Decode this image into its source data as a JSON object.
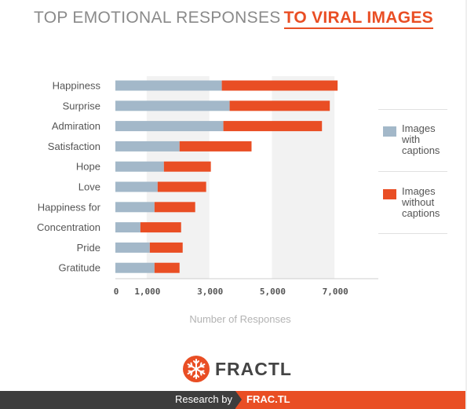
{
  "title": {
    "part1": "TOP EMOTIONAL RESPONSES",
    "part2": "TO VIRAL IMAGES"
  },
  "colors": {
    "with_captions": "#a3b8c9",
    "without_captions": "#e94e24",
    "band": "#f2f2f2",
    "text": "#555555",
    "accent": "#e94e24",
    "footer_dark": "#3d3d3d"
  },
  "chart_data": {
    "type": "bar",
    "orientation": "horizontal",
    "stacked": true,
    "categories": [
      "Happiness",
      "Surprise",
      "Admiration",
      "Satisfaction",
      "Hope",
      "Love",
      "Happiness for",
      "Concentration",
      "Pride",
      "Gratitude"
    ],
    "series": [
      {
        "name": "Images with captions",
        "values": [
          3400,
          3650,
          3450,
          2050,
          1550,
          1350,
          1250,
          800,
          1100,
          1250
        ]
      },
      {
        "name": "Images without captions",
        "values": [
          3700,
          3200,
          3150,
          2300,
          1500,
          1550,
          1300,
          1300,
          1050,
          800
        ]
      }
    ],
    "xticks": [
      "0",
      "1,000",
      "3,000",
      "5,000",
      "7,000"
    ],
    "xtick_values": [
      0,
      1000,
      3000,
      5000,
      7000
    ],
    "xlim": [
      0,
      8400
    ],
    "xlabel": "Number of Responses",
    "ylabel": "",
    "grid": false,
    "background_bands": [
      [
        1000,
        3000
      ],
      [
        5000,
        7000
      ]
    ],
    "legend_position": "right"
  },
  "legend": [
    {
      "label": "Images with captions",
      "lines": [
        "Images",
        "with",
        "captions"
      ]
    },
    {
      "label": "Images without captions",
      "lines": [
        "Images",
        "without",
        "captions"
      ]
    }
  ],
  "logo": {
    "text": "FRACTL",
    "icon": "snowflake-icon"
  },
  "footer": {
    "research_by": "Research by",
    "brand": "FRAC.TL"
  }
}
